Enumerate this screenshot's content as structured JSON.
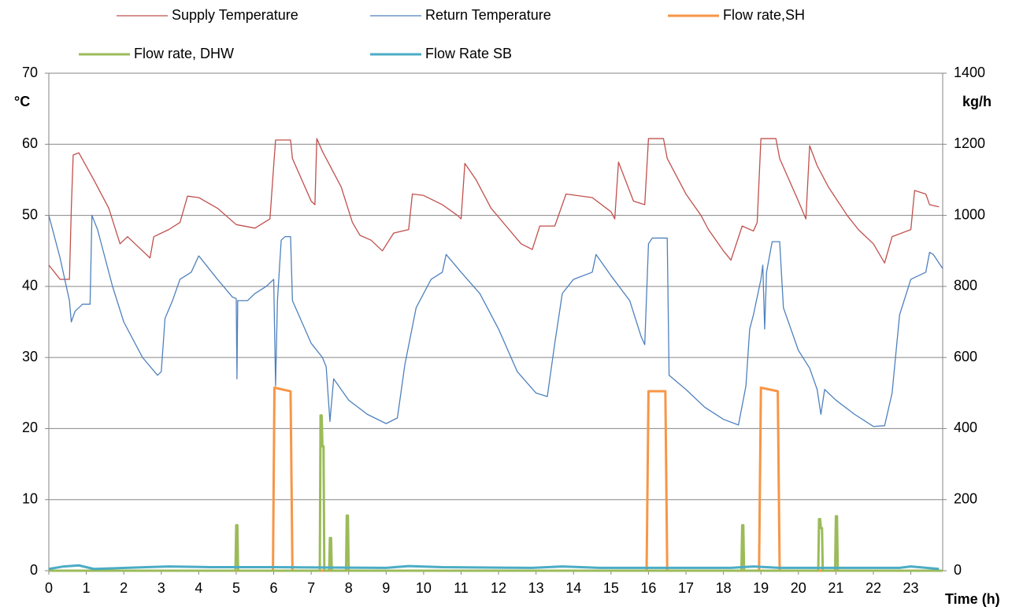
{
  "chart_data": {
    "type": "line",
    "xlabel": "Time (h)",
    "ylabel": "°C",
    "y2label": "kg/h",
    "xlim": [
      0,
      23.85
    ],
    "xticks": [
      0,
      1,
      2,
      3,
      4,
      5,
      6,
      7,
      8,
      9,
      10,
      11,
      12,
      13,
      14,
      15,
      16,
      17,
      18,
      19,
      20,
      21,
      22,
      23
    ],
    "ylim": [
      0,
      70
    ],
    "yticks": [
      0,
      10,
      20,
      30,
      40,
      50,
      60,
      70
    ],
    "y2lim": [
      0,
      1400
    ],
    "y2ticks": [
      0,
      200,
      400,
      600,
      800,
      1000,
      1200,
      1400
    ],
    "grid": true,
    "series": [
      {
        "name": "Supply Temperature",
        "color": "#c0504d",
        "line_width": 1.3,
        "x": [
          0,
          0.3,
          0.55,
          0.6,
          0.65,
          0.8,
          1.2,
          1.6,
          1.9,
          2.1,
          2.5,
          2.7,
          2.8,
          3.2,
          3.5,
          3.7,
          4.0,
          4.5,
          5.0,
          5.5,
          5.9,
          6.0,
          6.05,
          6.45,
          6.5,
          7.0,
          7.1,
          7.15,
          7.3,
          7.8,
          8.1,
          8.3,
          8.6,
          8.9,
          9.2,
          9.6,
          9.7,
          10.0,
          10.5,
          10.9,
          11.0,
          11.1,
          11.4,
          11.8,
          12.2,
          12.6,
          12.9,
          13.1,
          13.5,
          13.8,
          14.5,
          15.0,
          15.1,
          15.2,
          15.6,
          15.9,
          16.0,
          16.4,
          16.5,
          17.0,
          17.4,
          17.6,
          18.0,
          18.2,
          18.5,
          18.8,
          18.9,
          19.0,
          19.4,
          19.5,
          20.0,
          20.2,
          20.3,
          20.5,
          20.8,
          21.3,
          21.6,
          22.0,
          22.3,
          22.5,
          23.0,
          23.1,
          23.4,
          23.5,
          23.75
        ],
        "values": [
          43,
          41,
          41,
          51,
          58.5,
          58.8,
          55,
          51,
          46,
          47,
          45,
          44,
          47,
          48,
          49,
          52.7,
          52.5,
          51,
          48.7,
          48.2,
          49.5,
          57,
          60.6,
          60.6,
          58,
          52,
          51.5,
          60.8,
          59,
          54,
          49,
          47.2,
          46.5,
          45,
          47.5,
          48,
          53,
          52.8,
          51.5,
          50,
          49.5,
          57.3,
          55,
          51,
          48.5,
          46,
          45.2,
          48.5,
          48.5,
          53,
          52.5,
          50.5,
          49.5,
          57.5,
          52,
          51.5,
          60.8,
          60.8,
          58,
          53,
          50,
          48,
          45,
          43.7,
          48.5,
          47.8,
          49,
          60.8,
          60.8,
          58,
          52,
          49.5,
          59.8,
          57,
          54,
          50,
          48,
          46,
          43.3,
          47,
          48,
          53.5,
          53,
          51.5,
          51.2
        ]
      },
      {
        "name": "Return Temperature",
        "color": "#4f81bd",
        "line_width": 1.3,
        "x": [
          0,
          0.3,
          0.55,
          0.6,
          0.7,
          0.9,
          1.1,
          1.15,
          1.3,
          1.7,
          2.0,
          2.5,
          2.9,
          3.0,
          3.1,
          3.3,
          3.5,
          3.8,
          4.0,
          4.5,
          4.9,
          5.0,
          5.02,
          5.04,
          5.3,
          5.5,
          5.8,
          6.0,
          6.05,
          6.1,
          6.2,
          6.3,
          6.45,
          6.5,
          7.0,
          7.3,
          7.4,
          7.5,
          7.6,
          8.0,
          8.5,
          9.0,
          9.3,
          9.5,
          9.8,
          10.2,
          10.5,
          10.6,
          11.0,
          11.5,
          12.0,
          12.5,
          13.0,
          13.3,
          13.5,
          13.7,
          14.0,
          14.5,
          14.6,
          15.0,
          15.5,
          15.8,
          15.9,
          16.0,
          16.1,
          16.5,
          16.55,
          17.0,
          17.5,
          18.0,
          18.4,
          18.6,
          18.7,
          18.8,
          19.0,
          19.05,
          19.1,
          19.15,
          19.3,
          19.5,
          19.6,
          20.0,
          20.3,
          20.5,
          20.6,
          20.7,
          21.0,
          21.5,
          22.0,
          22.3,
          22.5,
          22.7,
          23.0,
          23.4,
          23.5,
          23.6,
          23.85
        ],
        "values": [
          50,
          44,
          38,
          35,
          36.5,
          37.5,
          37.5,
          50,
          48,
          40,
          35,
          30,
          27.5,
          28,
          35.5,
          38,
          41,
          42,
          44.3,
          41,
          38.5,
          38.3,
          27,
          38,
          38,
          39,
          40,
          41,
          26,
          38,
          46.5,
          47,
          47,
          38,
          32,
          30,
          28.7,
          21,
          27,
          24,
          22,
          20.7,
          21.5,
          29,
          37,
          41,
          42,
          44.5,
          42,
          39,
          34,
          28,
          25,
          24.5,
          32,
          39,
          41,
          42,
          44.5,
          41.5,
          38,
          33,
          31.8,
          46,
          46.8,
          46.8,
          27.5,
          25.5,
          23,
          21.3,
          20.5,
          26,
          34,
          36,
          41,
          43,
          34,
          42,
          46.3,
          46.3,
          37,
          31,
          28.5,
          25.5,
          22,
          25.5,
          24,
          22,
          20.3,
          20.4,
          25,
          36,
          41,
          42,
          44.8,
          44.5,
          42.5
        ]
      },
      {
        "name": "Flow rate,SH",
        "color": "#f79646",
        "line_width": 3,
        "axis": "y2",
        "x": [
          0,
          5.98,
          6.02,
          6.45,
          6.5,
          15.95,
          16.0,
          16.45,
          16.5,
          18.95,
          19.0,
          19.45,
          19.5,
          23.85
        ],
        "values": [
          0,
          0,
          515,
          505,
          0,
          0,
          505,
          505,
          0,
          0,
          515,
          505,
          0,
          0
        ]
      },
      {
        "name": "Flow rate, DHW",
        "color": "#9bbb59",
        "line_width": 3,
        "axis": "y2",
        "x": [
          0,
          4.98,
          5.0,
          5.03,
          5.05,
          7.23,
          7.25,
          7.28,
          7.3,
          7.33,
          7.35,
          7.48,
          7.5,
          7.53,
          7.55,
          7.93,
          7.95,
          7.98,
          8.0,
          18.48,
          18.5,
          18.53,
          18.55,
          20.53,
          20.55,
          20.58,
          20.6,
          20.63,
          20.65,
          20.98,
          21.0,
          21.03,
          21.05,
          23.85
        ],
        "values": [
          0,
          0,
          128,
          128,
          0,
          0,
          437,
          437,
          350,
          350,
          0,
          0,
          92,
          92,
          0,
          0,
          155,
          155,
          0,
          0,
          128,
          128,
          0,
          0,
          145,
          145,
          120,
          120,
          0,
          0,
          153,
          153,
          0,
          0
        ]
      },
      {
        "name": "Flow Rate SB",
        "color": "#4bacc6",
        "line_width": 3,
        "axis": "y2",
        "x": [
          0,
          0.4,
          0.8,
          1.2,
          2.6,
          3.2,
          4.3,
          6.0,
          9.0,
          9.6,
          10.5,
          12.9,
          13.7,
          14.7,
          18.2,
          18.8,
          19.5,
          22.7,
          23.0,
          23.75
        ],
        "values": [
          5,
          12,
          15,
          5,
          10,
          12,
          10,
          10,
          8,
          13,
          10,
          8,
          12,
          8,
          8,
          12,
          8,
          8,
          12,
          5
        ]
      }
    ]
  }
}
